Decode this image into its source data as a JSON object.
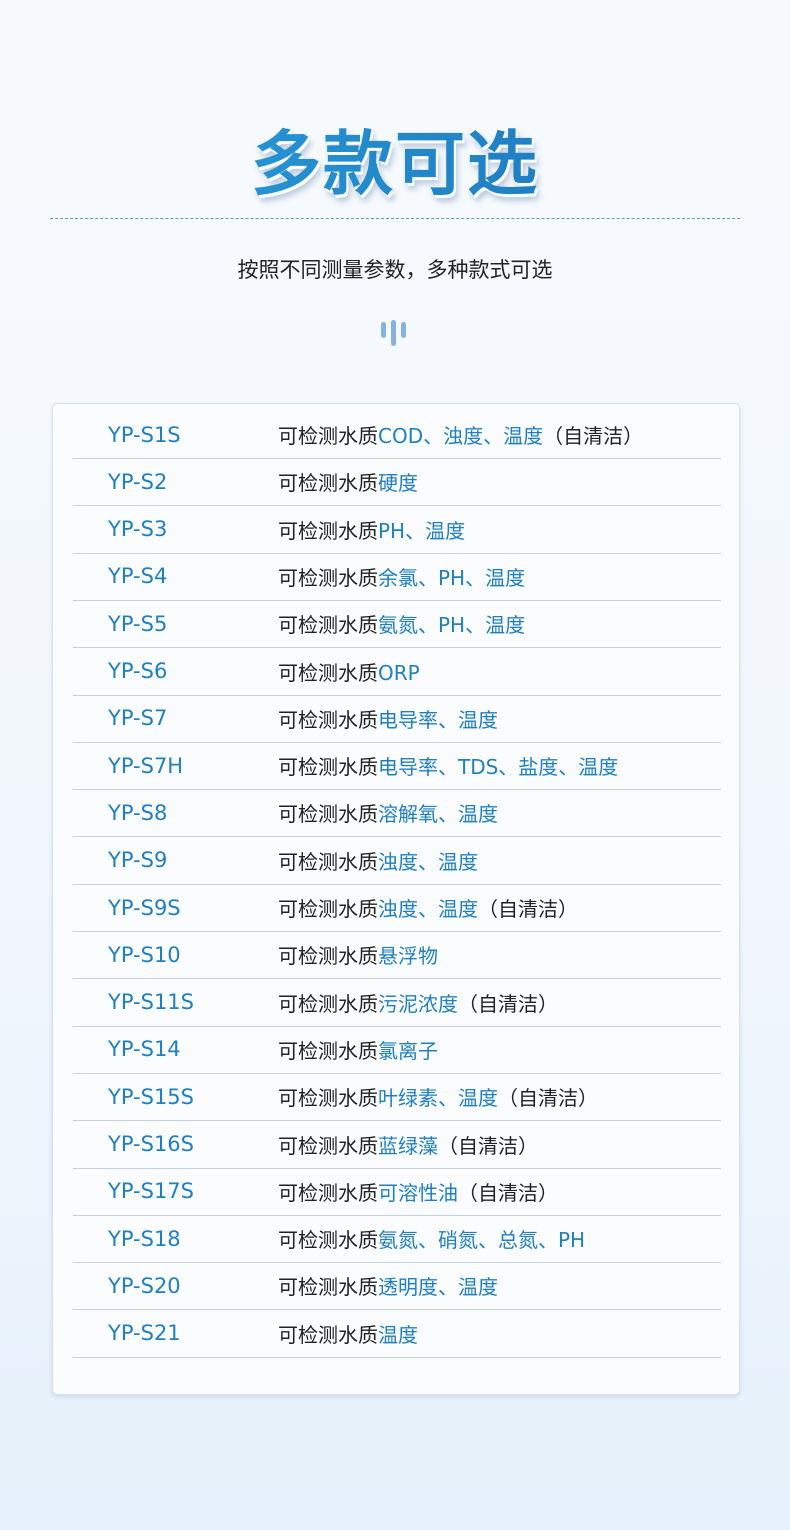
{
  "header": {
    "title": "多款可选",
    "subtitle": "按照不同测量参数，多种款式可选"
  },
  "colors": {
    "accent": "#1f7fc0",
    "text": "#222222"
  },
  "table": {
    "prefix": "可检测水质",
    "rows": [
      {
        "model": "YP-S1S",
        "params": "COD、浊度、温度",
        "suffix": "（自清洁）"
      },
      {
        "model": "YP-S2",
        "params": "硬度",
        "suffix": ""
      },
      {
        "model": "YP-S3",
        "params": "PH、温度",
        "suffix": ""
      },
      {
        "model": "YP-S4",
        "params": "余氯、PH、温度",
        "suffix": ""
      },
      {
        "model": "YP-S5",
        "params": "氨氮、PH、温度",
        "suffix": ""
      },
      {
        "model": "YP-S6",
        "params": "ORP",
        "suffix": ""
      },
      {
        "model": "YP-S7",
        "params": "电导率、温度",
        "suffix": ""
      },
      {
        "model": "YP-S7H",
        "params": "电导率、TDS、盐度、温度",
        "suffix": ""
      },
      {
        "model": "YP-S8",
        "params": "溶解氧、温度",
        "suffix": ""
      },
      {
        "model": "YP-S9",
        "params": "浊度、温度",
        "suffix": ""
      },
      {
        "model": "YP-S9S",
        "params": "浊度、温度",
        "suffix": "（自清洁）"
      },
      {
        "model": "YP-S10",
        "params": "悬浮物",
        "suffix": ""
      },
      {
        "model": "YP-S11S",
        "params": "污泥浓度",
        "suffix": "（自清洁）"
      },
      {
        "model": "YP-S14",
        "params": "氯离子",
        "suffix": ""
      },
      {
        "model": "YP-S15S",
        "params": "叶绿素、温度",
        "suffix": "（自清洁）"
      },
      {
        "model": "YP-S16S",
        "params": "蓝绿藻",
        "suffix": "（自清洁）"
      },
      {
        "model": "YP-S17S",
        "params": "可溶性油",
        "suffix": "（自清洁）"
      },
      {
        "model": "YP-S18",
        "params": "氨氮、硝氮、总氮、PH",
        "suffix": ""
      },
      {
        "model": "YP-S20",
        "params": "透明度、温度",
        "suffix": ""
      },
      {
        "model": "YP-S21",
        "params": "温度",
        "suffix": ""
      }
    ]
  }
}
